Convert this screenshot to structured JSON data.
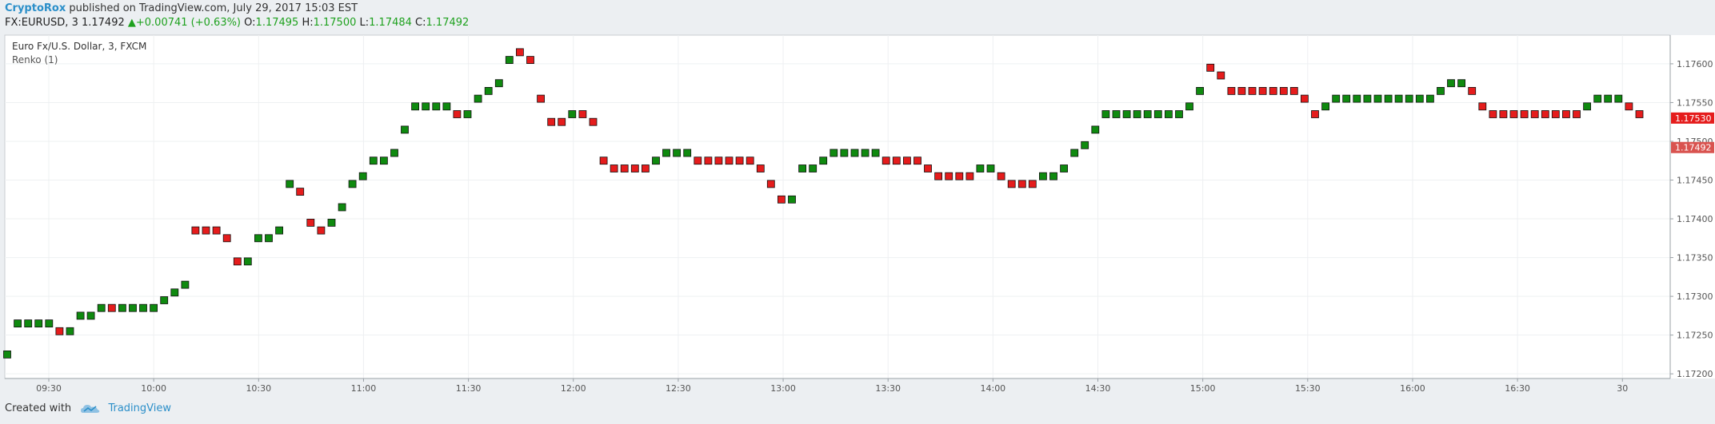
{
  "header": {
    "author": "CryptoRox",
    "published": " published on TradingView.com, July 29, 2017 15:03 EST",
    "symbol": "FX:EURUSD, 3",
    "last": "1.17492",
    "change": "+0.00741 (+0.63%)",
    "o_label": "O:",
    "o_value": "1.17495",
    "h_label": "H:",
    "h_value": "1.17500",
    "l_label": "L:",
    "l_value": "1.17484",
    "c_label": "C:",
    "c_value": "1.17492"
  },
  "legend": {
    "title": "Euro Fx/U.S. Dollar, 3, FXCM",
    "indicator": "Renko (1)"
  },
  "footer": {
    "created_with": "Created with",
    "brand": "TradingView"
  },
  "colors": {
    "up": "#0f8a0f",
    "down": "#e51c1c",
    "label_red": "#e51c1c",
    "label_last": "#d9534f"
  },
  "chart_data": {
    "type": "renko",
    "brick_size": 0.0001,
    "ylim": [
      1.17194,
      1.17637
    ],
    "x_ticks": [
      "09:30",
      "10:00",
      "10:30",
      "11:00",
      "11:30",
      "12:00",
      "12:30",
      "13:00",
      "13:30",
      "14:00",
      "14:30",
      "15:00",
      "15:30",
      "16:00",
      "16:30",
      "30"
    ],
    "y_ticks": [
      "1.17600",
      "1.17550",
      "1.17500",
      "1.17450",
      "1.17400",
      "1.17350",
      "1.17300",
      "1.17250",
      "1.17200"
    ],
    "price_labels": [
      {
        "text": "1.17530",
        "value": 1.1753,
        "color": "red"
      },
      {
        "text": "1.17492",
        "value": 1.17492,
        "color": "last"
      }
    ],
    "bricks": [
      {
        "d": "u",
        "p": 1.17225
      },
      {
        "d": "u",
        "p": 1.17265
      },
      {
        "d": "u",
        "p": 1.17265
      },
      {
        "d": "u",
        "p": 1.17265
      },
      {
        "d": "u",
        "p": 1.17265
      },
      {
        "d": "d",
        "p": 1.17255
      },
      {
        "d": "u",
        "p": 1.17255
      },
      {
        "d": "u",
        "p": 1.17275
      },
      {
        "d": "u",
        "p": 1.17275
      },
      {
        "d": "u",
        "p": 1.17285
      },
      {
        "d": "d",
        "p": 1.17285
      },
      {
        "d": "u",
        "p": 1.17285
      },
      {
        "d": "u",
        "p": 1.17285
      },
      {
        "d": "u",
        "p": 1.17285
      },
      {
        "d": "u",
        "p": 1.17285
      },
      {
        "d": "u",
        "p": 1.17295
      },
      {
        "d": "u",
        "p": 1.17305
      },
      {
        "d": "u",
        "p": 1.17315
      },
      {
        "d": "d",
        "p": 1.17385
      },
      {
        "d": "d",
        "p": 1.17385
      },
      {
        "d": "d",
        "p": 1.17385
      },
      {
        "d": "d",
        "p": 1.17375
      },
      {
        "d": "d",
        "p": 1.17345
      },
      {
        "d": "u",
        "p": 1.17345
      },
      {
        "d": "u",
        "p": 1.17375
      },
      {
        "d": "u",
        "p": 1.17375
      },
      {
        "d": "u",
        "p": 1.17385
      },
      {
        "d": "u",
        "p": 1.17445
      },
      {
        "d": "d",
        "p": 1.17435
      },
      {
        "d": "d",
        "p": 1.17395
      },
      {
        "d": "d",
        "p": 1.17385
      },
      {
        "d": "u",
        "p": 1.17395
      },
      {
        "d": "u",
        "p": 1.17415
      },
      {
        "d": "u",
        "p": 1.17445
      },
      {
        "d": "u",
        "p": 1.17455
      },
      {
        "d": "u",
        "p": 1.17475
      },
      {
        "d": "u",
        "p": 1.17475
      },
      {
        "d": "u",
        "p": 1.17485
      },
      {
        "d": "u",
        "p": 1.17515
      },
      {
        "d": "u",
        "p": 1.17545
      },
      {
        "d": "u",
        "p": 1.17545
      },
      {
        "d": "u",
        "p": 1.17545
      },
      {
        "d": "u",
        "p": 1.17545
      },
      {
        "d": "d",
        "p": 1.17535
      },
      {
        "d": "u",
        "p": 1.17535
      },
      {
        "d": "u",
        "p": 1.17555
      },
      {
        "d": "u",
        "p": 1.17565
      },
      {
        "d": "u",
        "p": 1.17575
      },
      {
        "d": "u",
        "p": 1.17605
      },
      {
        "d": "d",
        "p": 1.17615
      },
      {
        "d": "d",
        "p": 1.17605
      },
      {
        "d": "d",
        "p": 1.17555
      },
      {
        "d": "d",
        "p": 1.17525
      },
      {
        "d": "d",
        "p": 1.17525
      },
      {
        "d": "u",
        "p": 1.17535
      },
      {
        "d": "d",
        "p": 1.17535
      },
      {
        "d": "d",
        "p": 1.17525
      },
      {
        "d": "d",
        "p": 1.17475
      },
      {
        "d": "d",
        "p": 1.17465
      },
      {
        "d": "d",
        "p": 1.17465
      },
      {
        "d": "d",
        "p": 1.17465
      },
      {
        "d": "d",
        "p": 1.17465
      },
      {
        "d": "u",
        "p": 1.17475
      },
      {
        "d": "u",
        "p": 1.17485
      },
      {
        "d": "u",
        "p": 1.17485
      },
      {
        "d": "u",
        "p": 1.17485
      },
      {
        "d": "d",
        "p": 1.17475
      },
      {
        "d": "d",
        "p": 1.17475
      },
      {
        "d": "d",
        "p": 1.17475
      },
      {
        "d": "d",
        "p": 1.17475
      },
      {
        "d": "d",
        "p": 1.17475
      },
      {
        "d": "d",
        "p": 1.17475
      },
      {
        "d": "d",
        "p": 1.17465
      },
      {
        "d": "d",
        "p": 1.17445
      },
      {
        "d": "d",
        "p": 1.17425
      },
      {
        "d": "u",
        "p": 1.17425
      },
      {
        "d": "u",
        "p": 1.17465
      },
      {
        "d": "u",
        "p": 1.17465
      },
      {
        "d": "u",
        "p": 1.17475
      },
      {
        "d": "u",
        "p": 1.17485
      },
      {
        "d": "u",
        "p": 1.17485
      },
      {
        "d": "u",
        "p": 1.17485
      },
      {
        "d": "u",
        "p": 1.17485
      },
      {
        "d": "u",
        "p": 1.17485
      },
      {
        "d": "d",
        "p": 1.17475
      },
      {
        "d": "d",
        "p": 1.17475
      },
      {
        "d": "d",
        "p": 1.17475
      },
      {
        "d": "d",
        "p": 1.17475
      },
      {
        "d": "d",
        "p": 1.17465
      },
      {
        "d": "d",
        "p": 1.17455
      },
      {
        "d": "d",
        "p": 1.17455
      },
      {
        "d": "d",
        "p": 1.17455
      },
      {
        "d": "d",
        "p": 1.17455
      },
      {
        "d": "u",
        "p": 1.17465
      },
      {
        "d": "u",
        "p": 1.17465
      },
      {
        "d": "d",
        "p": 1.17455
      },
      {
        "d": "d",
        "p": 1.17445
      },
      {
        "d": "d",
        "p": 1.17445
      },
      {
        "d": "d",
        "p": 1.17445
      },
      {
        "d": "u",
        "p": 1.17455
      },
      {
        "d": "u",
        "p": 1.17455
      },
      {
        "d": "u",
        "p": 1.17465
      },
      {
        "d": "u",
        "p": 1.17485
      },
      {
        "d": "u",
        "p": 1.17495
      },
      {
        "d": "u",
        "p": 1.17515
      },
      {
        "d": "u",
        "p": 1.17535
      },
      {
        "d": "u",
        "p": 1.17535
      },
      {
        "d": "u",
        "p": 1.17535
      },
      {
        "d": "u",
        "p": 1.17535
      },
      {
        "d": "u",
        "p": 1.17535
      },
      {
        "d": "u",
        "p": 1.17535
      },
      {
        "d": "u",
        "p": 1.17535
      },
      {
        "d": "u",
        "p": 1.17535
      },
      {
        "d": "u",
        "p": 1.17545
      },
      {
        "d": "u",
        "p": 1.17565
      },
      {
        "d": "d",
        "p": 1.17595
      },
      {
        "d": "d",
        "p": 1.17585
      },
      {
        "d": "d",
        "p": 1.17565
      },
      {
        "d": "d",
        "p": 1.17565
      },
      {
        "d": "d",
        "p": 1.17565
      },
      {
        "d": "d",
        "p": 1.17565
      },
      {
        "d": "d",
        "p": 1.17565
      },
      {
        "d": "d",
        "p": 1.17565
      },
      {
        "d": "d",
        "p": 1.17565
      },
      {
        "d": "d",
        "p": 1.17555
      },
      {
        "d": "d",
        "p": 1.17535
      },
      {
        "d": "u",
        "p": 1.17545
      },
      {
        "d": "u",
        "p": 1.17555
      },
      {
        "d": "u",
        "p": 1.17555
      },
      {
        "d": "u",
        "p": 1.17555
      },
      {
        "d": "u",
        "p": 1.17555
      },
      {
        "d": "u",
        "p": 1.17555
      },
      {
        "d": "u",
        "p": 1.17555
      },
      {
        "d": "u",
        "p": 1.17555
      },
      {
        "d": "u",
        "p": 1.17555
      },
      {
        "d": "u",
        "p": 1.17555
      },
      {
        "d": "u",
        "p": 1.17555
      },
      {
        "d": "u",
        "p": 1.17565
      },
      {
        "d": "u",
        "p": 1.17575
      },
      {
        "d": "u",
        "p": 1.17575
      },
      {
        "d": "d",
        "p": 1.17565
      },
      {
        "d": "d",
        "p": 1.17545
      },
      {
        "d": "d",
        "p": 1.17535
      },
      {
        "d": "d",
        "p": 1.17535
      },
      {
        "d": "d",
        "p": 1.17535
      },
      {
        "d": "d",
        "p": 1.17535
      },
      {
        "d": "d",
        "p": 1.17535
      },
      {
        "d": "d",
        "p": 1.17535
      },
      {
        "d": "d",
        "p": 1.17535
      },
      {
        "d": "d",
        "p": 1.17535
      },
      {
        "d": "d",
        "p": 1.17535
      },
      {
        "d": "u",
        "p": 1.17545
      },
      {
        "d": "u",
        "p": 1.17555
      },
      {
        "d": "u",
        "p": 1.17555
      },
      {
        "d": "u",
        "p": 1.17555
      },
      {
        "d": "d",
        "p": 1.17545
      },
      {
        "d": "d",
        "p": 1.17535
      }
    ]
  }
}
